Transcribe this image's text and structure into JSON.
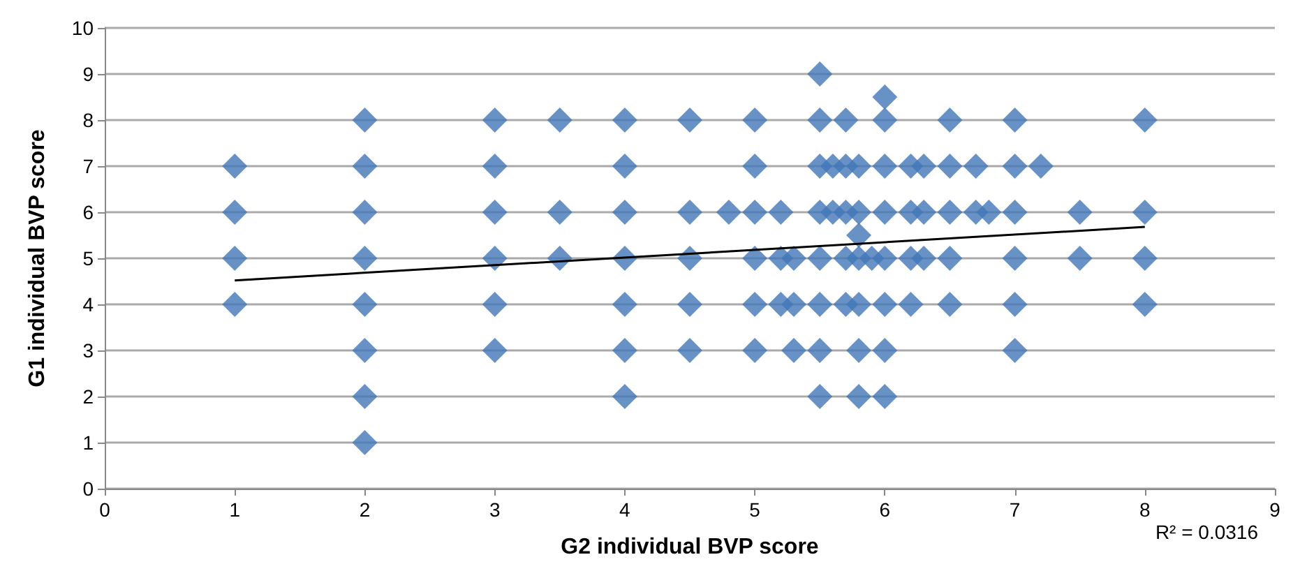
{
  "chart_data": {
    "type": "scatter",
    "xlabel": "G2 individual BVP score",
    "ylabel": "G1 individual BVP score",
    "xlim": [
      0,
      9
    ],
    "xticks": [
      0,
      1,
      2,
      3,
      4,
      5,
      6,
      7,
      8,
      9
    ],
    "ylim": [
      0,
      10
    ],
    "yticks": [
      0,
      1,
      2,
      3,
      4,
      5,
      6,
      7,
      8,
      9,
      10
    ],
    "grid": "y",
    "marker": "diamond",
    "annotations": [
      "R² = 0.0316"
    ],
    "series": [
      {
        "color": "#4277b8",
        "x": [
          1,
          1,
          1,
          1,
          2,
          2,
          2,
          2,
          2,
          2,
          2,
          2,
          3,
          3,
          3,
          3,
          3,
          3,
          3.5,
          3.5,
          3.5,
          4,
          4,
          4,
          4,
          4,
          4,
          4,
          4.5,
          4.5,
          4.5,
          4.5,
          4.5,
          4.8,
          5,
          5,
          5,
          5,
          5,
          5,
          5.2,
          5.2,
          5.2,
          5.3,
          5.3,
          5.3,
          5.5,
          5.5,
          5.5,
          5.5,
          5.5,
          5.5,
          5.5,
          5.5,
          5.6,
          5.6,
          5.7,
          5.7,
          5.7,
          5.7,
          5.7,
          5.8,
          5.8,
          5.8,
          5.8,
          5.8,
          5.8,
          5.8,
          5.9,
          6,
          6,
          6,
          6,
          6,
          6,
          6,
          6,
          6.2,
          6.2,
          6.2,
          6.2,
          6.3,
          6.3,
          6.3,
          6.5,
          6.5,
          6.5,
          6.5,
          6.5,
          6.7,
          6.7,
          6.8,
          7,
          7,
          7,
          7,
          7,
          7,
          7.2,
          7.5,
          7.5,
          8,
          8,
          8,
          8
        ],
        "values": [
          4,
          5,
          6,
          7,
          1,
          2,
          3,
          4,
          5,
          6,
          7,
          8,
          3,
          4,
          5,
          6,
          7,
          8,
          5,
          6,
          8,
          2,
          3,
          4,
          5,
          6,
          7,
          8,
          3,
          4,
          5,
          6,
          8,
          6,
          3,
          4,
          5,
          6,
          7,
          8,
          4,
          5,
          6,
          3,
          4,
          5,
          2,
          3,
          4,
          5,
          6,
          7,
          8,
          9,
          6,
          7,
          4,
          5,
          6,
          7,
          8,
          2,
          3,
          4,
          5,
          5.5,
          6,
          7,
          5,
          2,
          3,
          4,
          5,
          6,
          7,
          8,
          8.5,
          4,
          5,
          6,
          7,
          5,
          6,
          7,
          4,
          5,
          6,
          7,
          8,
          6,
          7,
          6,
          3,
          4,
          5,
          6,
          7,
          8,
          7,
          5,
          6,
          4,
          5,
          6,
          8
        ]
      },
      {
        "type": "line",
        "color": "#000000",
        "marker": "none",
        "x": [
          1,
          8
        ],
        "values": [
          4.52,
          5.68
        ]
      }
    ]
  }
}
